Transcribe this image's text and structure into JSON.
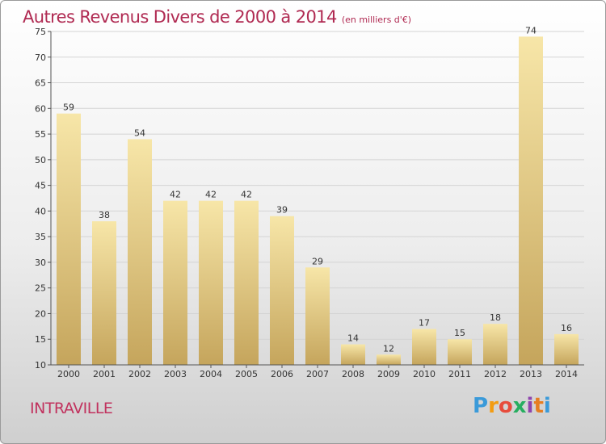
{
  "title": "Autres Revenus Divers de 2000 à 2014",
  "unit": "(en milliers d'€)",
  "location": "INTRAVILLE",
  "logo": {
    "letters": [
      "P",
      "r",
      "o",
      "x",
      "i",
      "t",
      "i"
    ],
    "colors": [
      "#3a9ad9",
      "#f39c12",
      "#e74c3c",
      "#27ae60",
      "#8e44ad",
      "#e67e22",
      "#3a9ad9"
    ]
  },
  "colors": {
    "title": "#b02a52",
    "bar_light": "#f6e3a4",
    "bar_dark": "#c8a95f"
  },
  "chart_data": {
    "type": "bar",
    "categories": [
      "2000",
      "2001",
      "2002",
      "2003",
      "2004",
      "2005",
      "2006",
      "2007",
      "2008",
      "2009",
      "2010",
      "2011",
      "2012",
      "2013",
      "2014"
    ],
    "values": [
      59,
      38,
      54,
      42,
      42,
      42,
      39,
      29,
      14,
      12,
      17,
      15,
      18,
      74,
      16
    ],
    "ylim": [
      10,
      75
    ],
    "yticks": [
      10,
      15,
      20,
      25,
      30,
      35,
      40,
      45,
      50,
      55,
      60,
      65,
      70,
      75
    ],
    "grid": true,
    "title": "Autres Revenus Divers de 2000 à 2014",
    "xlabel": "",
    "ylabel": ""
  }
}
